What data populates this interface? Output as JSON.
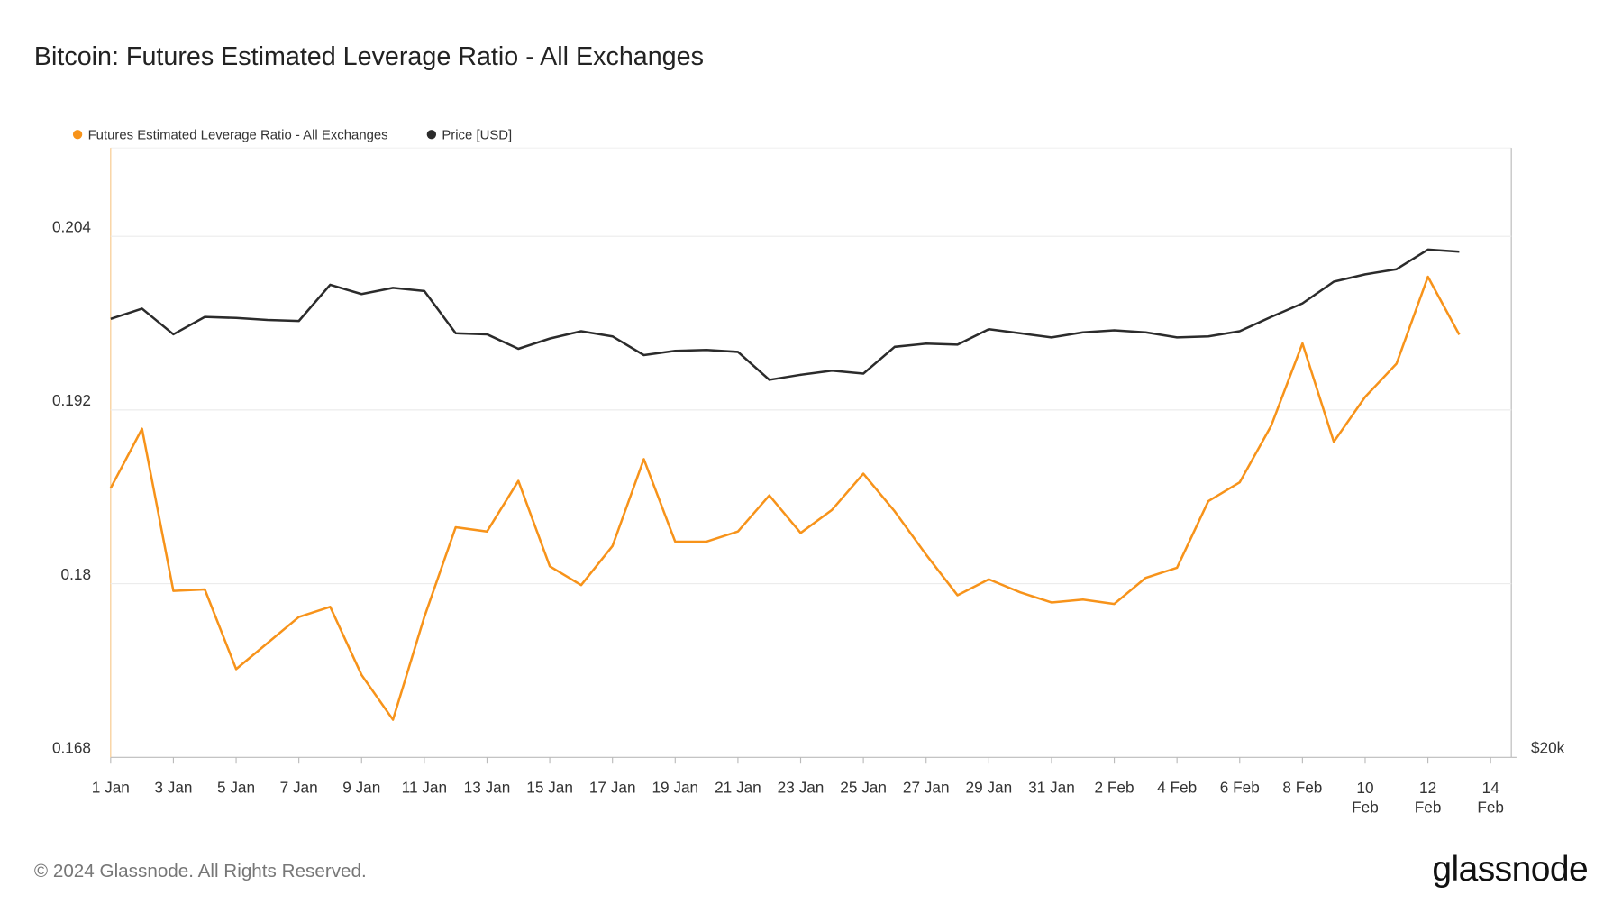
{
  "chart_data": {
    "type": "line",
    "title": "Bitcoin: Futures Estimated Leverage Ratio - All Exchanges",
    "x": [
      0,
      1,
      2,
      3,
      4,
      5,
      6,
      7,
      8,
      9,
      10,
      11,
      12,
      13,
      14,
      15,
      16,
      17,
      18,
      19,
      20,
      21,
      22,
      23,
      24,
      25,
      26,
      27,
      28,
      29,
      30,
      31,
      32,
      33,
      34,
      35,
      36,
      37,
      38,
      39,
      40,
      41,
      42,
      43
    ],
    "xlim": [
      0,
      44.66
    ],
    "xticks": [
      {
        "value": 0,
        "label": "1 Jan"
      },
      {
        "value": 2,
        "label": "3 Jan"
      },
      {
        "value": 4,
        "label": "5 Jan"
      },
      {
        "value": 6,
        "label": "7 Jan"
      },
      {
        "value": 8,
        "label": "9 Jan"
      },
      {
        "value": 10,
        "label": "11 Jan"
      },
      {
        "value": 12,
        "label": "13 Jan"
      },
      {
        "value": 14,
        "label": "15 Jan"
      },
      {
        "value": 16,
        "label": "17 Jan"
      },
      {
        "value": 18,
        "label": "19 Jan"
      },
      {
        "value": 20,
        "label": "21 Jan"
      },
      {
        "value": 22,
        "label": "23 Jan"
      },
      {
        "value": 24,
        "label": "25 Jan"
      },
      {
        "value": 26,
        "label": "27 Jan"
      },
      {
        "value": 28,
        "label": "29 Jan"
      },
      {
        "value": 30,
        "label": "31 Jan"
      },
      {
        "value": 32,
        "label": "2 Feb"
      },
      {
        "value": 34,
        "label": "4 Feb"
      },
      {
        "value": 36,
        "label": "6 Feb"
      },
      {
        "value": 38,
        "label": "8 Feb"
      },
      {
        "value": 40,
        "label": "10\nFeb"
      },
      {
        "value": 42,
        "label": "12\nFeb"
      },
      {
        "value": 44,
        "label": "14\nFeb"
      }
    ],
    "ylim": [
      0.168,
      0.2101
    ],
    "yticks": [
      0.168,
      0.18,
      0.192,
      0.204
    ],
    "y2lim": [
      20000,
      59800
    ],
    "y2scale": "log",
    "y2ticks": [
      {
        "value": 20000,
        "label": "$20k"
      }
    ],
    "grid": true,
    "series": [
      {
        "name": "Futures Estimated Leverage Ratio - All Exchanges",
        "color": "#f7931a",
        "values": [
          0.1866,
          0.1907,
          0.1795,
          0.1796,
          0.1741,
          0.1759,
          0.1777,
          0.1784,
          0.1737,
          0.1706,
          0.1777,
          0.1839,
          0.1836,
          0.1871,
          0.1812,
          0.1799,
          0.1826,
          0.1886,
          0.1829,
          0.1829,
          0.1836,
          0.1861,
          0.1835,
          0.1851,
          0.1876,
          0.185,
          0.182,
          0.1792,
          0.1803,
          0.1794,
          0.1787,
          0.1789,
          0.1786,
          0.1804,
          0.1811,
          0.1857,
          0.187,
          0.1909,
          0.1966,
          0.1898,
          0.1929,
          0.1952,
          0.2012,
          0.1972
        ]
      },
      {
        "name": "Price [USD]",
        "color": "#2b2b2b",
        "axis": "y2",
        "values": [
          43980,
          44800,
          42780,
          44140,
          44060,
          43900,
          43820,
          46770,
          45990,
          46510,
          46250,
          42860,
          42780,
          41680,
          42460,
          43020,
          42620,
          41210,
          41530,
          41600,
          41450,
          39420,
          39780,
          40080,
          39860,
          41830,
          42070,
          41990,
          43170,
          42860,
          42540,
          42930,
          43090,
          42930,
          42540,
          42620,
          43020,
          44140,
          45230,
          47030,
          47650,
          48090,
          49820,
          49630
        ]
      }
    ]
  },
  "footer": "© 2024 Glassnode. All Rights Reserved.",
  "logo": "glassnode"
}
